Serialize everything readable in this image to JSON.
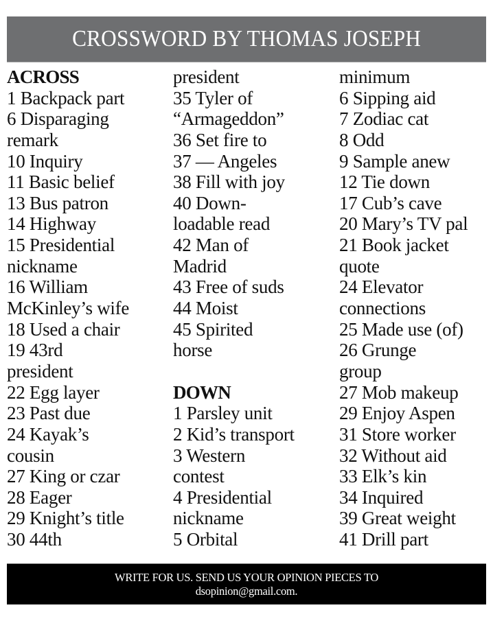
{
  "title": "CROSSWORD BY THOMAS JOSEPH",
  "columns": [
    [
      {
        "text": "ACROSS",
        "heading": true
      },
      {
        "text": "1 Backpack part"
      },
      {
        "text": "6 Disparaging"
      },
      {
        "text": "remark"
      },
      {
        "text": "10 Inquiry"
      },
      {
        "text": "11 Basic belief"
      },
      {
        "text": "13 Bus patron"
      },
      {
        "text": "14 Highway"
      },
      {
        "text": "15 Presidential"
      },
      {
        "text": "nickname"
      },
      {
        "text": "16 William"
      },
      {
        "text": "McKinley’s wife"
      },
      {
        "text": "18 Used a chair"
      },
      {
        "text": "19 43rd"
      },
      {
        "text": "president"
      },
      {
        "text": "22 Egg layer"
      },
      {
        "text": "23 Past due"
      },
      {
        "text": "24 Kayak’s"
      },
      {
        "text": "cousin"
      },
      {
        "text": "27 King or czar"
      },
      {
        "text": "28 Eager"
      },
      {
        "text": "29 Knight’s title"
      },
      {
        "text": "30 44th"
      }
    ],
    [
      {
        "text": "president"
      },
      {
        "text": "35 Tyler of"
      },
      {
        "text": "“Armageddon”"
      },
      {
        "text": "36 Set fire to"
      },
      {
        "text": "37 — Angeles"
      },
      {
        "text": "38 Fill with joy"
      },
      {
        "text": "40 Down-"
      },
      {
        "text": "loadable read"
      },
      {
        "text": "42 Man of"
      },
      {
        "text": "Madrid"
      },
      {
        "text": "43 Free of suds"
      },
      {
        "text": "44 Moist"
      },
      {
        "text": "45 Spirited"
      },
      {
        "text": "horse"
      },
      {
        "text": ""
      },
      {
        "text": "DOWN",
        "heading": true
      },
      {
        "text": "1 Parsley unit"
      },
      {
        "text": "2 Kid’s transport"
      },
      {
        "text": "3 Western"
      },
      {
        "text": "contest"
      },
      {
        "text": "4 Presidential"
      },
      {
        "text": "nickname"
      },
      {
        "text": "5 Orbital"
      }
    ],
    [
      {
        "text": "minimum"
      },
      {
        "text": "6 Sipping aid"
      },
      {
        "text": "7 Zodiac cat"
      },
      {
        "text": "8 Odd"
      },
      {
        "text": "9 Sample anew"
      },
      {
        "text": "12 Tie down"
      },
      {
        "text": "17 Cub’s cave"
      },
      {
        "text": "20 Mary’s TV pal"
      },
      {
        "text": "21 Book jacket"
      },
      {
        "text": "quote"
      },
      {
        "text": "24 Elevator"
      },
      {
        "text": "connections"
      },
      {
        "text": "25 Made use (of)"
      },
      {
        "text": "26 Grunge"
      },
      {
        "text": "group"
      },
      {
        "text": "27 Mob makeup"
      },
      {
        "text": "29 Enjoy Aspen"
      },
      {
        "text": "31 Store worker"
      },
      {
        "text": "32 Without aid"
      },
      {
        "text": "33 Elk’s kin"
      },
      {
        "text": "34 Inquired"
      },
      {
        "text": "39 Great weight"
      },
      {
        "text": "41 Drill part"
      }
    ]
  ],
  "footer": {
    "line1": "WRITE FOR US. SEND US YOUR OPINION PIECES TO",
    "line2": "dsopinion@gmail.com."
  },
  "colors": {
    "header_bg": "#6e6f71",
    "footer_bg": "#000000"
  }
}
